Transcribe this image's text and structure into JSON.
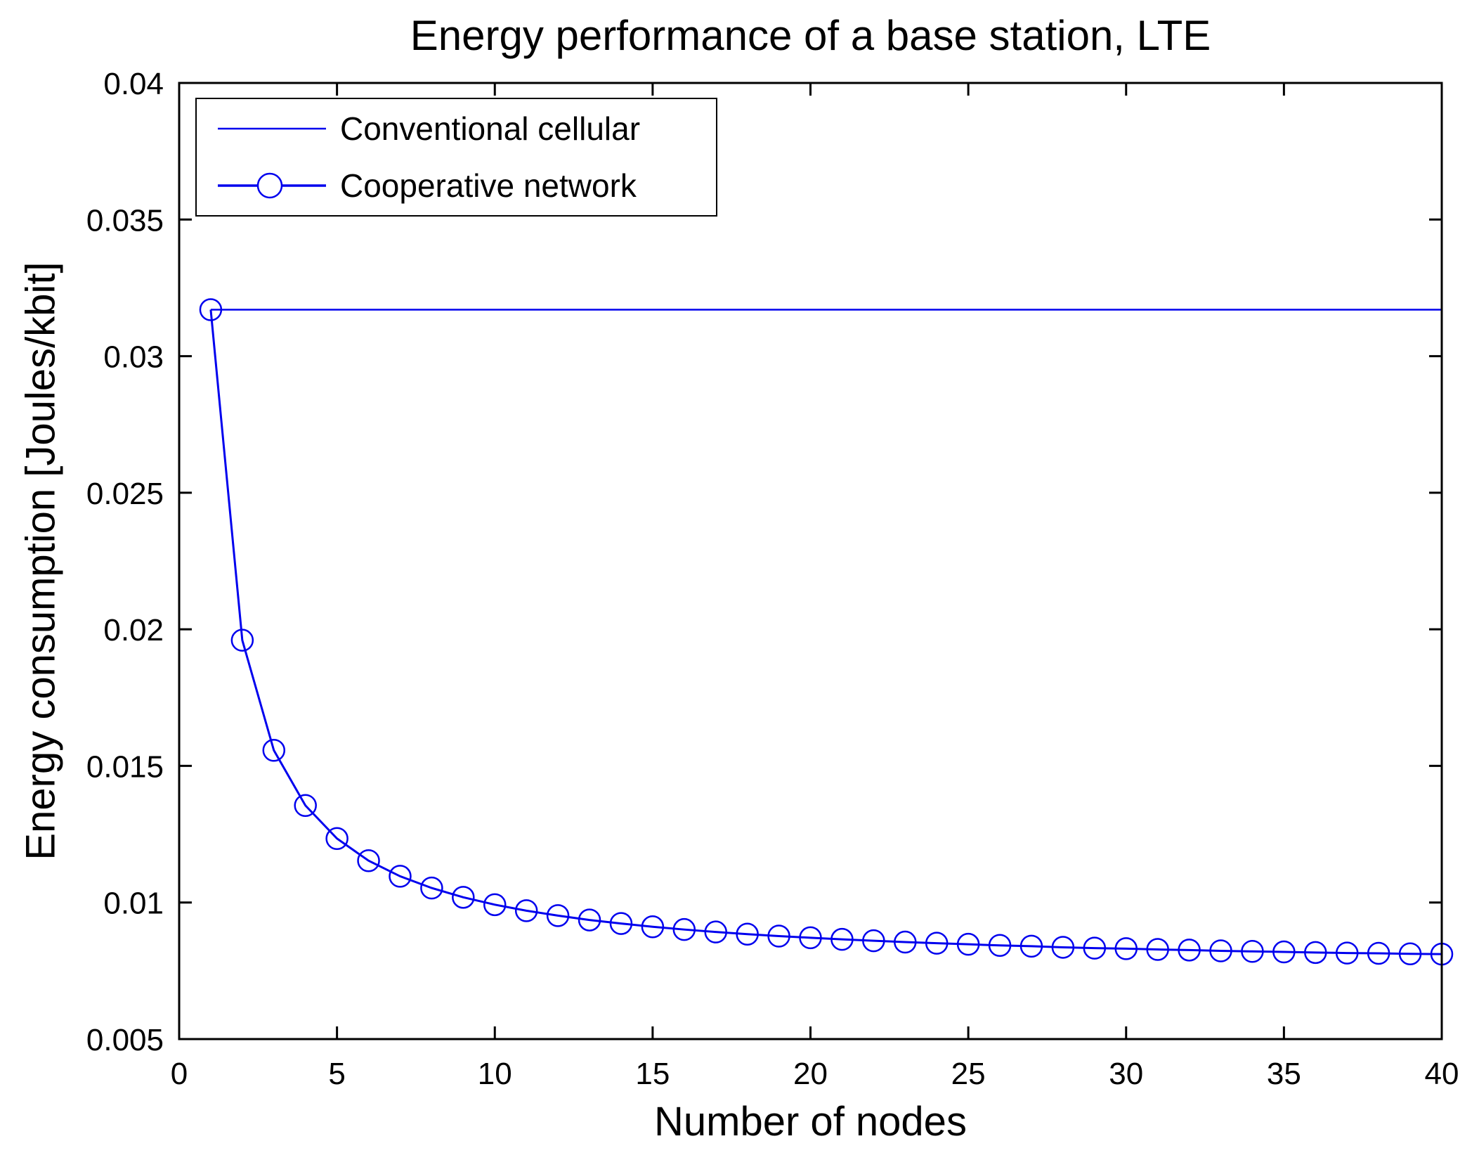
{
  "chart_data": {
    "type": "line",
    "title": "Energy performance of a base station, LTE",
    "xlabel": "Number of nodes",
    "ylabel": "Energy consumption [Joules/kbit]",
    "xlim": [
      0,
      40
    ],
    "ylim": [
      0.005,
      0.04
    ],
    "x_ticks": [
      0,
      5,
      10,
      15,
      20,
      25,
      30,
      35,
      40
    ],
    "x_tick_labels": [
      "0",
      "5",
      "10",
      "15",
      "20",
      "25",
      "30",
      "35",
      "40"
    ],
    "y_ticks": [
      0.005,
      0.01,
      0.015,
      0.02,
      0.025,
      0.03,
      0.035,
      0.04
    ],
    "y_tick_labels": [
      "0.005",
      "0.01",
      "0.015",
      "0.02",
      "0.025",
      "0.03",
      "0.035",
      "0.04"
    ],
    "grid": false,
    "legend_position": "top-left",
    "line_color": "#0000EE",
    "axis_color": "#000000",
    "series": [
      {
        "name": "Conventional cellular",
        "type": "line",
        "marker": "none",
        "color": "#0000EE",
        "x": [
          1,
          40
        ],
        "y": [
          0.0317,
          0.0317
        ]
      },
      {
        "name": "Cooperative network",
        "type": "line",
        "marker": "circle",
        "color": "#0000EE",
        "x": [
          1,
          2,
          3,
          4,
          5,
          6,
          7,
          8,
          9,
          10,
          11,
          12,
          13,
          14,
          15,
          16,
          17,
          18,
          19,
          20,
          21,
          22,
          23,
          24,
          25,
          26,
          27,
          28,
          29,
          30,
          31,
          32,
          33,
          34,
          35,
          36,
          37,
          38,
          39,
          40
        ],
        "y": [
          0.0317,
          0.0196,
          0.01557,
          0.01355,
          0.01234,
          0.01153,
          0.01096,
          0.01053,
          0.01019,
          0.00992,
          0.0097,
          0.00952,
          0.00936,
          0.00923,
          0.00911,
          0.00901,
          0.00892,
          0.00884,
          0.00877,
          0.00871,
          0.00865,
          0.0086,
          0.00855,
          0.00851,
          0.00847,
          0.00843,
          0.0084,
          0.00836,
          0.00833,
          0.00831,
          0.00828,
          0.00826,
          0.00823,
          0.00821,
          0.00819,
          0.00817,
          0.00815,
          0.00814,
          0.00812,
          0.00811
        ]
      }
    ]
  }
}
